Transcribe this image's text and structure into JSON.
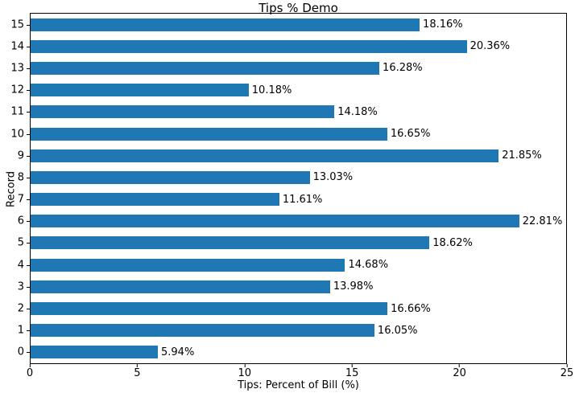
{
  "chart_data": {
    "type": "bar",
    "orientation": "horizontal",
    "title": "Tips % Demo",
    "xlabel": "Tips: Percent of Bill (%)",
    "ylabel": "Record",
    "categories": [
      "0",
      "1",
      "2",
      "3",
      "4",
      "5",
      "6",
      "7",
      "8",
      "9",
      "10",
      "11",
      "12",
      "13",
      "14",
      "15"
    ],
    "values": [
      5.94,
      16.05,
      16.66,
      13.98,
      14.68,
      18.62,
      22.81,
      11.61,
      13.03,
      21.85,
      16.65,
      14.18,
      10.18,
      16.28,
      20.36,
      18.16
    ],
    "value_labels": [
      "5.94%",
      "16.05%",
      "16.66%",
      "13.98%",
      "14.68%",
      "18.62%",
      "22.81%",
      "11.61%",
      "13.03%",
      "21.85%",
      "16.65%",
      "14.18%",
      "10.18%",
      "16.28%",
      "20.36%",
      "18.16%"
    ],
    "xlim": [
      0,
      25
    ],
    "xticks": [
      "0",
      "5",
      "10",
      "15",
      "20",
      "25"
    ],
    "xtick_values": [
      0,
      5,
      10,
      15,
      20,
      25
    ],
    "grid": false,
    "legend": "none",
    "bar_color": "#1f77b4",
    "axis_color": "#000000"
  }
}
